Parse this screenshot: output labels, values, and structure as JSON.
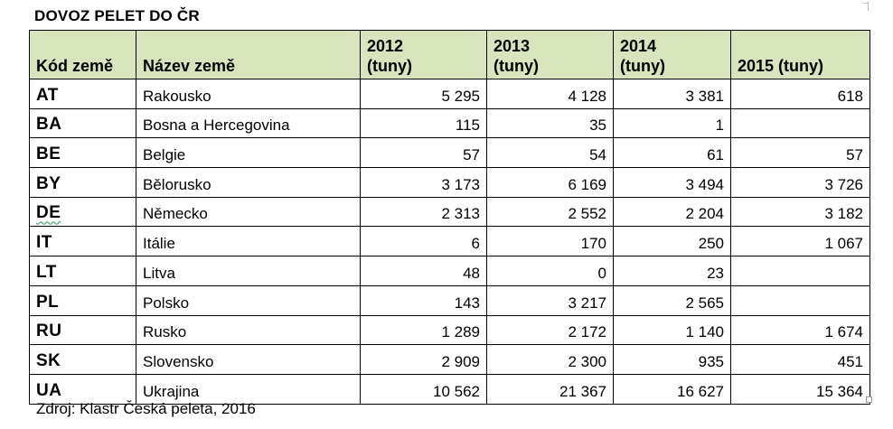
{
  "title": "DOVOZ PELET DO ČR",
  "table": {
    "headers": {
      "code": "Kód země",
      "name": "Název země",
      "y2012": [
        "2012",
        "(tuny)"
      ],
      "y2013": [
        "2013",
        "(tuny)"
      ],
      "y2014": [
        "2014",
        "(tuny)"
      ],
      "y2015": "2015 (tuny)"
    },
    "rows": [
      {
        "code": "AT",
        "name": "Rakousko",
        "v2012": "5 295",
        "v2013": "4 128",
        "v2014": "3 381",
        "v2015": "618"
      },
      {
        "code": "BA",
        "name": "Bosna a Hercegovina",
        "v2012": "115",
        "v2013": "35",
        "v2014": "1",
        "v2015": ""
      },
      {
        "code": "BE",
        "name": "Belgie",
        "v2012": "57",
        "v2013": "54",
        "v2014": "61",
        "v2015": "57"
      },
      {
        "code": "BY",
        "name": "Bělorusko",
        "v2012": "3 173",
        "v2013": "6 169",
        "v2014": "3 494",
        "v2015": "3 726"
      },
      {
        "code": "DE",
        "name": "Německo",
        "v2012": "2 313",
        "v2013": "2 552",
        "v2014": "2 204",
        "v2015": "3 182"
      },
      {
        "code": "IT",
        "name": "Itálie",
        "v2012": "6",
        "v2013": "170",
        "v2014": "250",
        "v2015": "1 067"
      },
      {
        "code": "LT",
        "name": "Litva",
        "v2012": "48",
        "v2013": "0",
        "v2014": "23",
        "v2015": ""
      },
      {
        "code": "PL",
        "name": "Polsko",
        "v2012": "143",
        "v2013": "3 217",
        "v2014": "2 565",
        "v2015": ""
      },
      {
        "code": "RU",
        "name": "Rusko",
        "v2012": "1 289",
        "v2013": "2 172",
        "v2014": "1 140",
        "v2015": "1 674"
      },
      {
        "code": "SK",
        "name": "Slovensko",
        "v2012": "2 909",
        "v2013": "2 300",
        "v2014": "935",
        "v2015": "451"
      },
      {
        "code": "UA",
        "name": "Ukrajina",
        "v2012": "10 562",
        "v2013": "21 367",
        "v2014": "16 627",
        "v2015": "15 364"
      }
    ]
  },
  "source": "Zdroj: Klastr Česká peleta, 2016"
}
